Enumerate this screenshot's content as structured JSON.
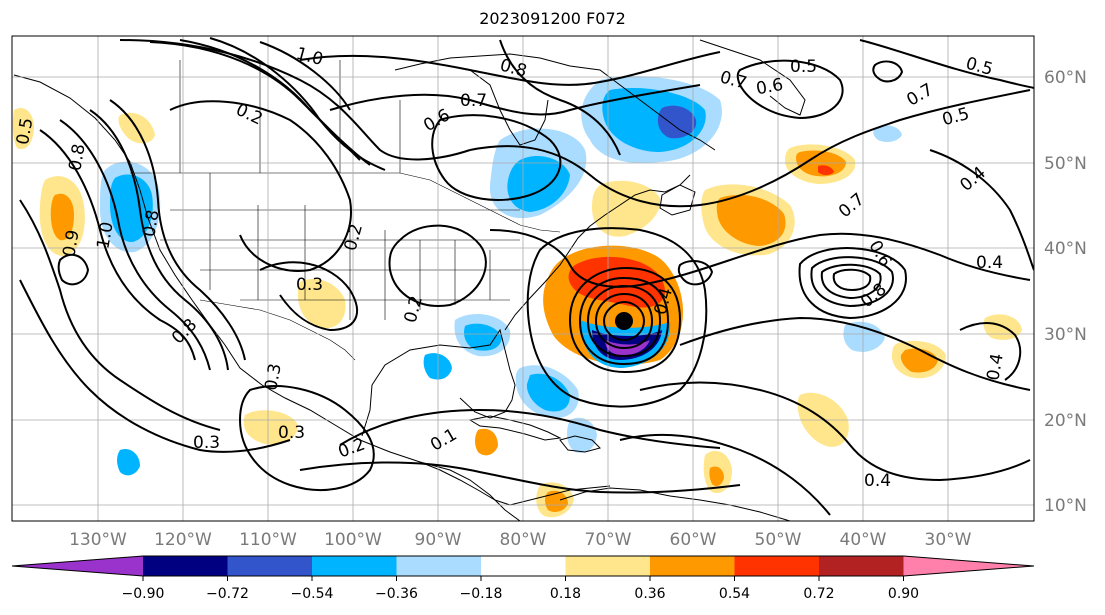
{
  "title": "2023091200 F072",
  "map": {
    "longitude_labels": [
      "130°W",
      "120°W",
      "110°W",
      "100°W",
      "90°W",
      "80°W",
      "70°W",
      "60°W",
      "50°W",
      "40°W",
      "30°W"
    ],
    "latitude_labels": [
      "60°N",
      "50°N",
      "40°N",
      "30°N",
      "20°N",
      "10°N"
    ],
    "contour_labels": [
      "1.0",
      "0.8",
      "0.7",
      "0.6",
      "0.5",
      "0.7",
      "0.5",
      "0.4",
      "0.7",
      "0.5",
      "0.2",
      "0.6",
      "0.8",
      "0.8",
      "0.5",
      "0.3",
      "0.2",
      "0.2",
      "0.4",
      "0.3",
      "0.3",
      "0.3",
      "0.2",
      "0.4",
      "0.4",
      "0.6",
      "0.8",
      "0.4",
      "0.9",
      "1.0",
      "0.8",
      "0.1",
      "0.7"
    ]
  },
  "colorbar": {
    "ticks": [
      "−0.90",
      "−0.72",
      "−0.54",
      "−0.36",
      "−0.18",
      "0.18",
      "0.36",
      "0.54",
      "0.72",
      "0.90"
    ],
    "colors": [
      "#9933cc",
      "#000080",
      "#3355cc",
      "#00b4ff",
      "#aadcff",
      "#ffffff",
      "#ffe68c",
      "#ff9900",
      "#ff3300",
      "#b22222",
      "#ff80aa"
    ]
  }
}
